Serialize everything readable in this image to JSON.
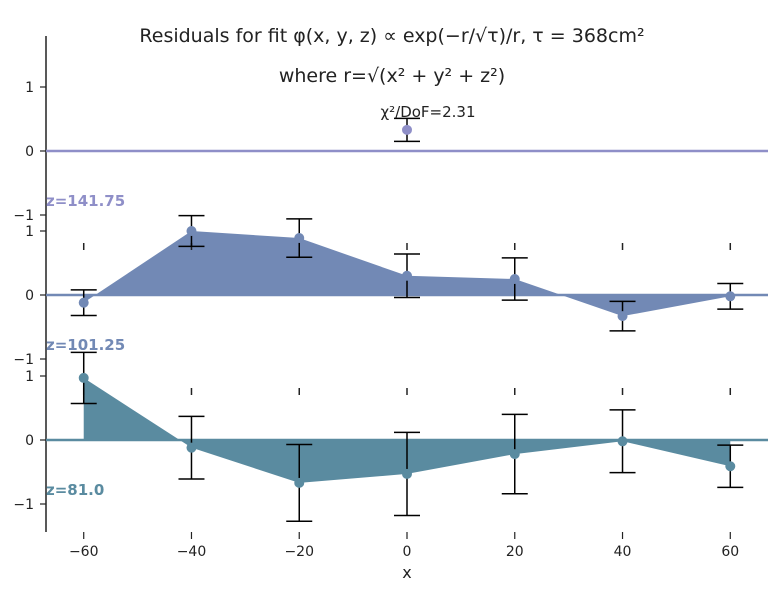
{
  "title_line1": "Residuals for fit φ(x, y, z) ∝ exp(−r/√τ)/r, τ = 368cm²",
  "title_line2": "where r=√(x² + y² + z²)",
  "stat_text": "χ²/DoF=2.31",
  "xlabel": "x",
  "colors": {
    "z141": "#8f8fc8",
    "z101": "#7289b5",
    "z81": "#5a8ba0",
    "axis": "#222222"
  },
  "chart_data": {
    "type": "area",
    "x": [
      -60,
      -40,
      -20,
      0,
      20,
      40,
      60
    ],
    "x_ticks": [
      -60,
      -40,
      -20,
      0,
      20,
      40,
      60
    ],
    "xlim": [
      -67,
      67
    ],
    "ylim": [
      -1.4,
      1.4
    ],
    "y_ticks": [
      -1,
      0,
      1
    ],
    "panels": [
      {
        "label": "z=141.75",
        "color": "#8f8fc8",
        "points": [
          {
            "x": 0,
            "y": 0.33,
            "err": 0.18
          }
        ]
      },
      {
        "label": "z=101.25",
        "color": "#7289b5",
        "points": [
          {
            "x": -60,
            "y": -0.12,
            "err": 0.2
          },
          {
            "x": -40,
            "y": 1.0,
            "err": 0.24
          },
          {
            "x": -20,
            "y": 0.89,
            "err": 0.3
          },
          {
            "x": 0,
            "y": 0.3,
            "err": 0.34
          },
          {
            "x": 20,
            "y": 0.25,
            "err": 0.33
          },
          {
            "x": 40,
            "y": -0.33,
            "err": 0.23
          },
          {
            "x": 60,
            "y": -0.02,
            "err": 0.2
          }
        ]
      },
      {
        "label": "z=81.0",
        "color": "#5a8ba0",
        "points": [
          {
            "x": -60,
            "y": 0.97,
            "err": 0.4
          },
          {
            "x": -40,
            "y": -0.12,
            "err": 0.49
          },
          {
            "x": -20,
            "y": -0.67,
            "err": 0.6
          },
          {
            "x": 0,
            "y": -0.53,
            "err": 0.65
          },
          {
            "x": 20,
            "y": -0.22,
            "err": 0.62
          },
          {
            "x": 40,
            "y": -0.02,
            "err": 0.49
          },
          {
            "x": 60,
            "y": -0.41,
            "err": 0.33
          }
        ]
      }
    ]
  }
}
